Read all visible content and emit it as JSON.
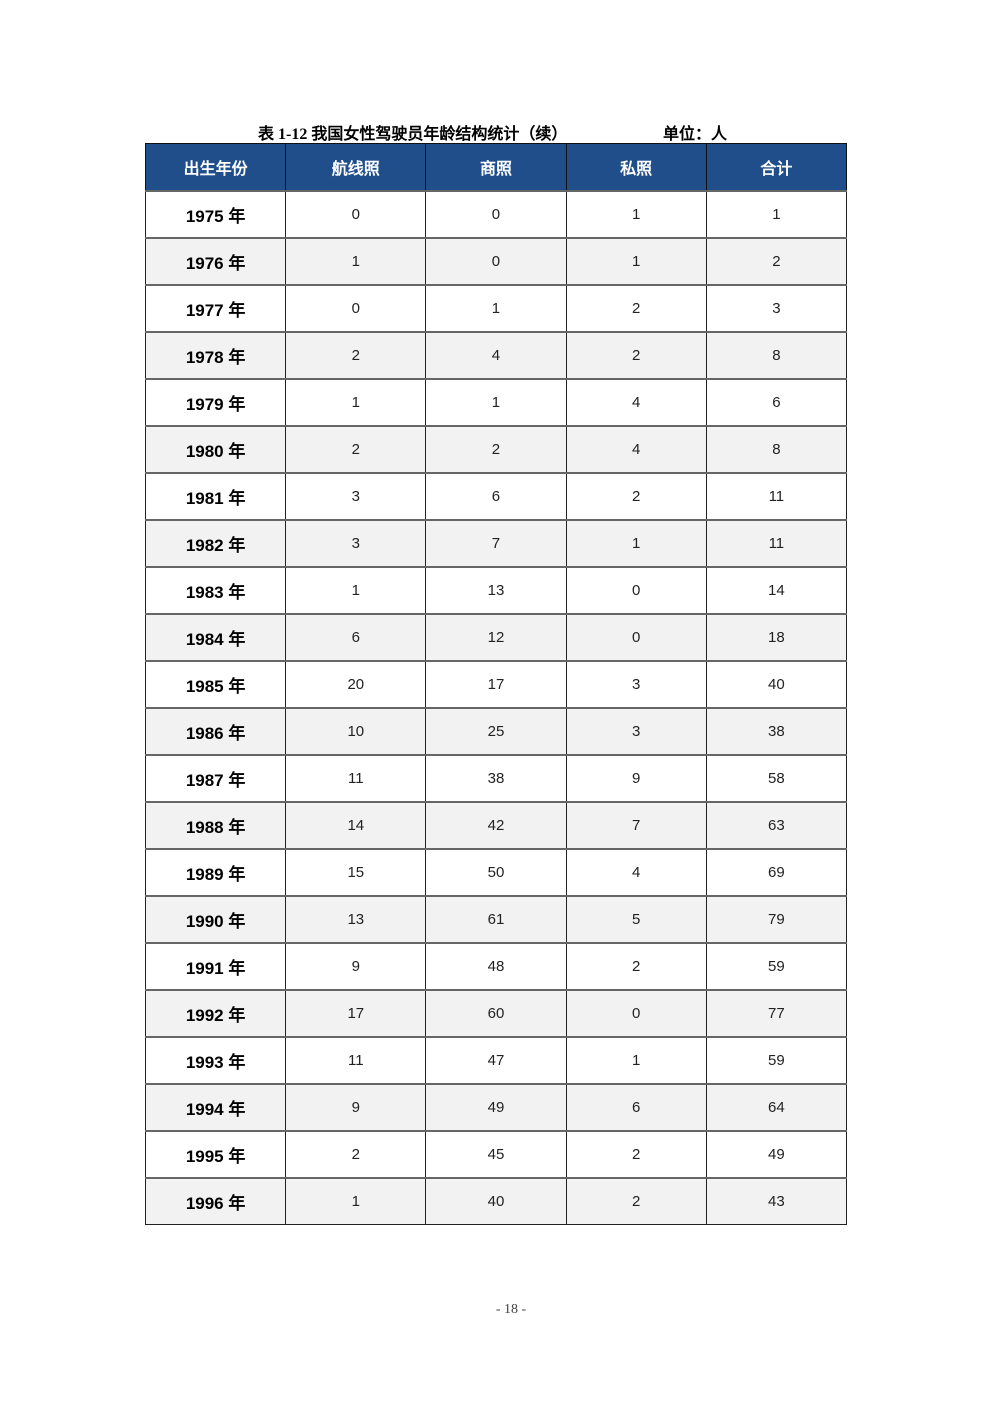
{
  "caption": {
    "title": "表 1-12  我国女性驾驶员年龄结构统计（续）",
    "unit": "单位：人"
  },
  "table": {
    "headers": [
      "出生年份",
      "航线照",
      "商照",
      "私照",
      "合计"
    ],
    "rows": [
      [
        "1975 年",
        "0",
        "0",
        "1",
        "1"
      ],
      [
        "1976 年",
        "1",
        "0",
        "1",
        "2"
      ],
      [
        "1977 年",
        "0",
        "1",
        "2",
        "3"
      ],
      [
        "1978 年",
        "2",
        "4",
        "2",
        "8"
      ],
      [
        "1979 年",
        "1",
        "1",
        "4",
        "6"
      ],
      [
        "1980 年",
        "2",
        "2",
        "4",
        "8"
      ],
      [
        "1981 年",
        "3",
        "6",
        "2",
        "11"
      ],
      [
        "1982 年",
        "3",
        "7",
        "1",
        "11"
      ],
      [
        "1983 年",
        "1",
        "13",
        "0",
        "14"
      ],
      [
        "1984 年",
        "6",
        "12",
        "0",
        "18"
      ],
      [
        "1985 年",
        "20",
        "17",
        "3",
        "40"
      ],
      [
        "1986 年",
        "10",
        "25",
        "3",
        "38"
      ],
      [
        "1987 年",
        "11",
        "38",
        "9",
        "58"
      ],
      [
        "1988 年",
        "14",
        "42",
        "7",
        "63"
      ],
      [
        "1989 年",
        "15",
        "50",
        "4",
        "69"
      ],
      [
        "1990 年",
        "13",
        "61",
        "5",
        "79"
      ],
      [
        "1991 年",
        "9",
        "48",
        "2",
        "59"
      ],
      [
        "1992 年",
        "17",
        "60",
        "0",
        "77"
      ],
      [
        "1993 年",
        "11",
        "47",
        "1",
        "59"
      ],
      [
        "1994 年",
        "9",
        "49",
        "6",
        "64"
      ],
      [
        "1995 年",
        "2",
        "45",
        "2",
        "49"
      ],
      [
        "1996 年",
        "1",
        "40",
        "2",
        "43"
      ]
    ]
  },
  "colors": {
    "header_bg": "#1f4e8a",
    "alt_row_bg": "#f2f2f2"
  },
  "footer": {
    "page_number": "- 18 -"
  }
}
